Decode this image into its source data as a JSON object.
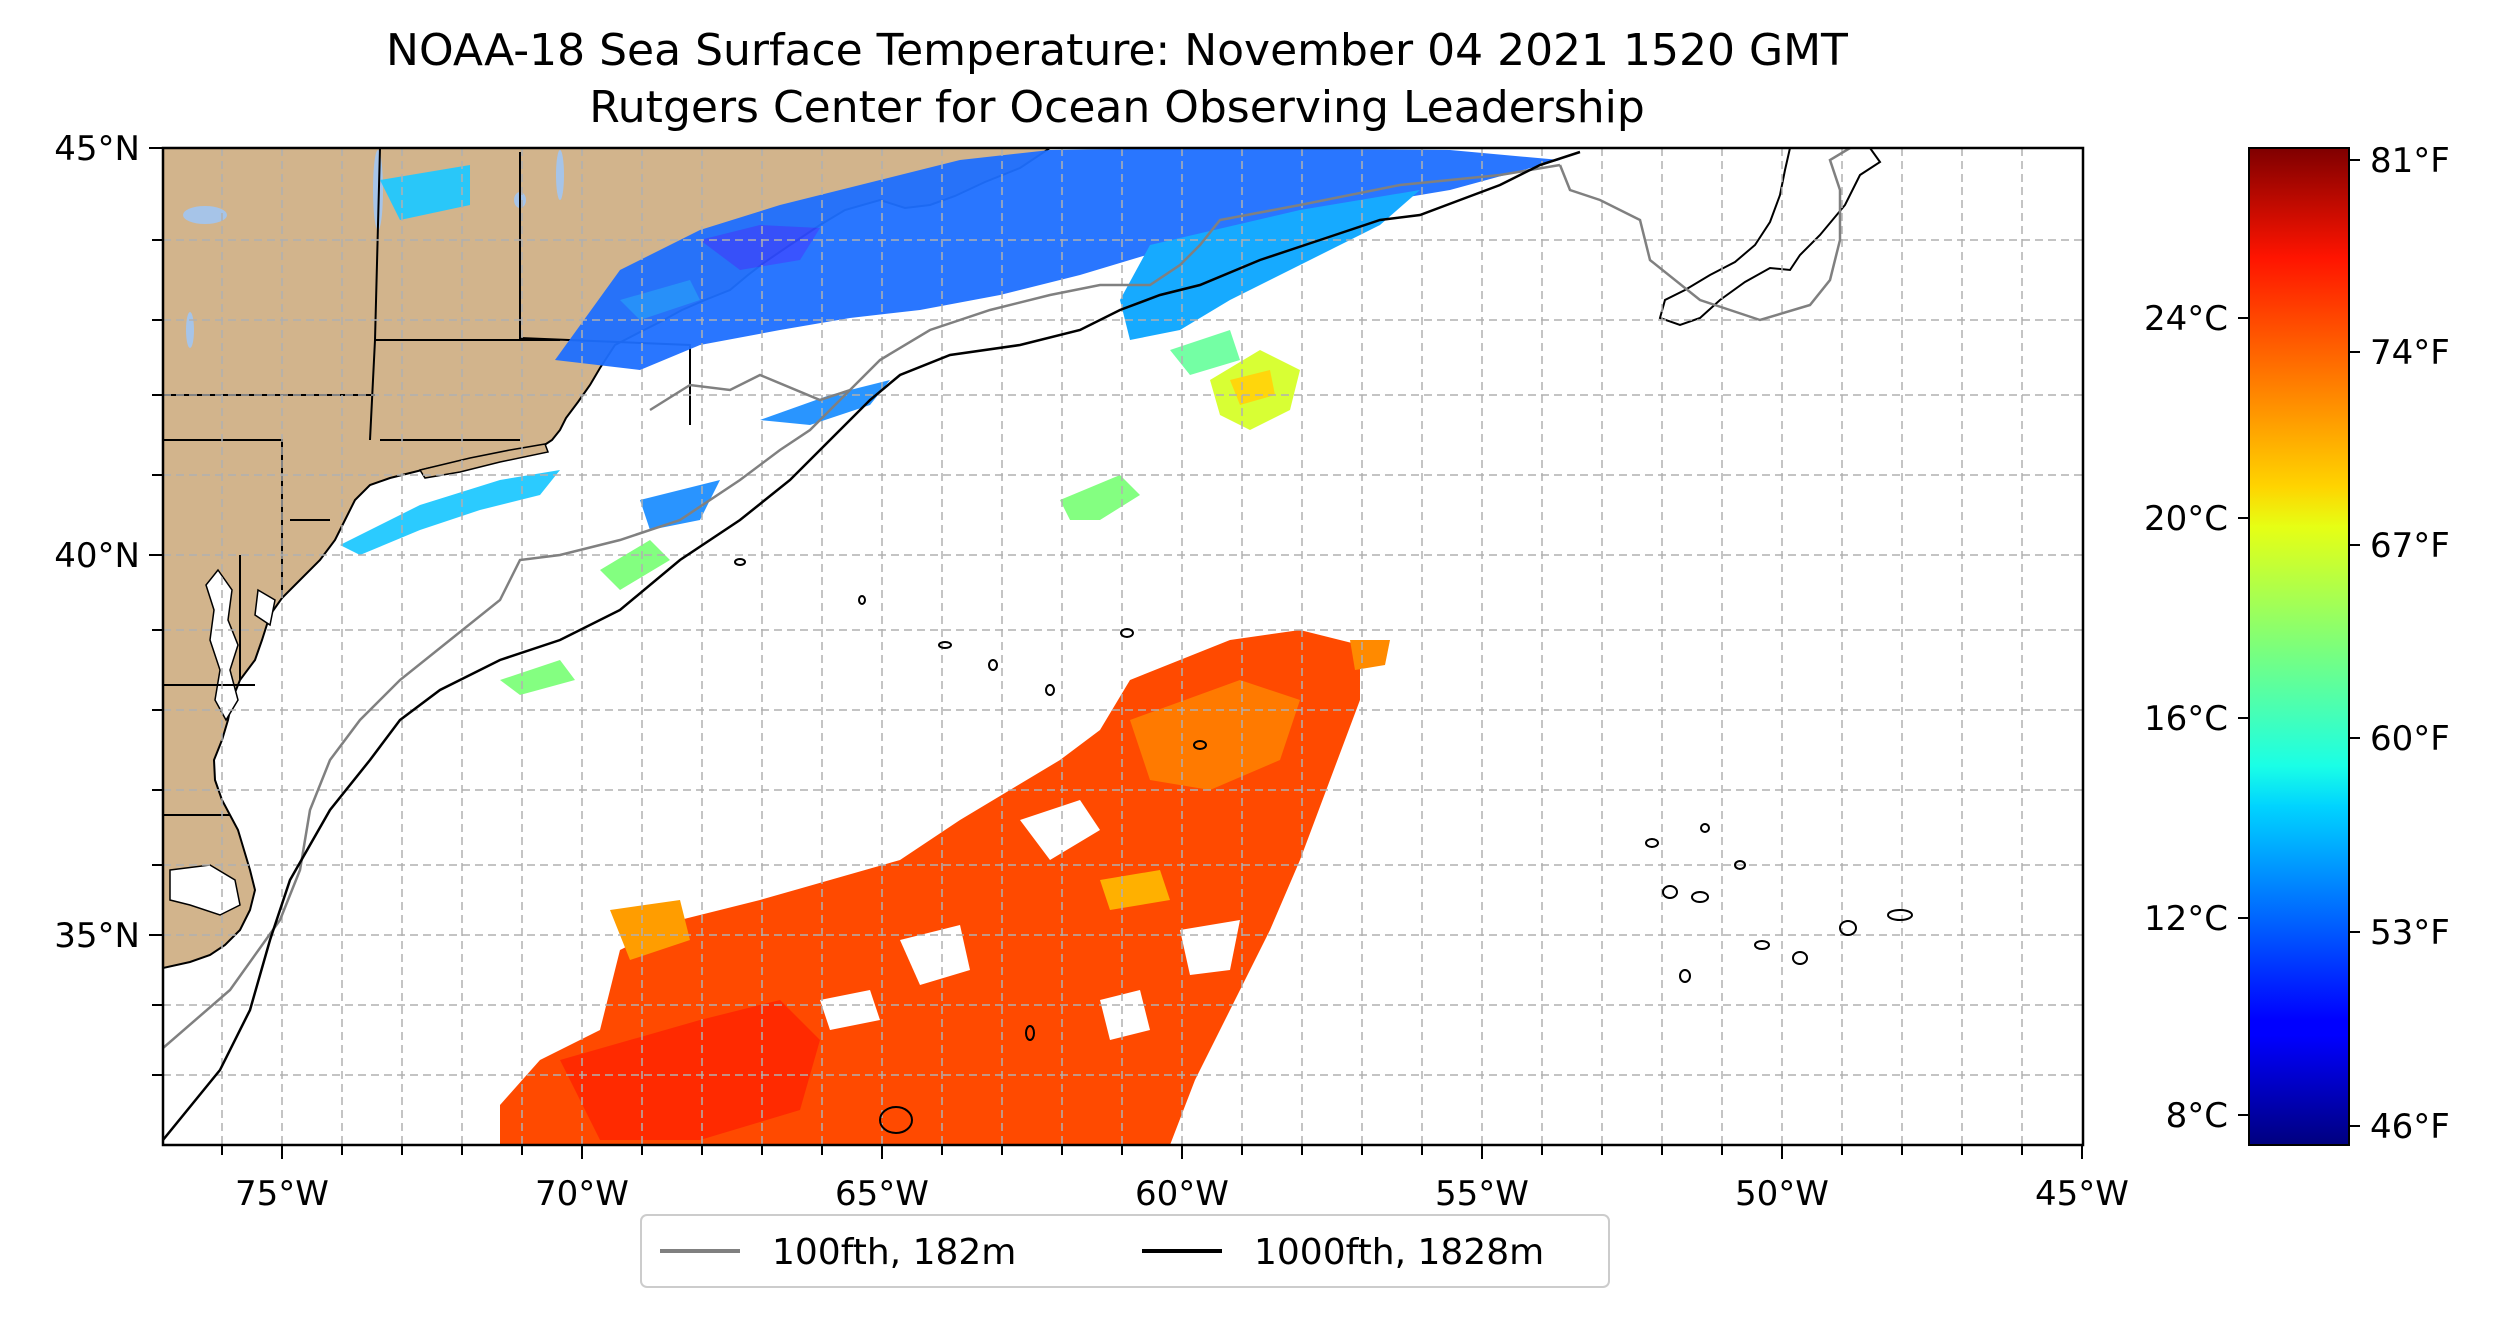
{
  "title": "NOAA-18 Sea Surface Temperature: November 04 2021 1520 GMT",
  "subtitle": "Rutgers Center for Ocean Observing Leadership",
  "map": {
    "lon_range": [
      -77,
      -45
    ],
    "lat_range": [
      31.8,
      45
    ],
    "lon_ticks": [
      "75°W",
      "70°W",
      "65°W",
      "60°W",
      "55°W",
      "50°W",
      "45°W"
    ],
    "lat_ticks": [
      "35°N",
      "40°N",
      "45°N"
    ],
    "gridlines": true,
    "land_color": "#d2b48c",
    "lake_color": "#a6c4e8"
  },
  "colorbar": {
    "colormap": "jet",
    "celsius_ticks": [
      "8°C",
      "12°C",
      "16°C",
      "20°C",
      "24°C"
    ],
    "fahrenheit_ticks": [
      "46°F",
      "53°F",
      "60°F",
      "67°F",
      "74°F",
      "81°F"
    ]
  },
  "legend": {
    "placement": "bottom-center",
    "items": [
      {
        "label": "100fth, 182m",
        "color": "#808080"
      },
      {
        "label": "1000fth, 1828m",
        "color": "#000000"
      }
    ]
  }
}
